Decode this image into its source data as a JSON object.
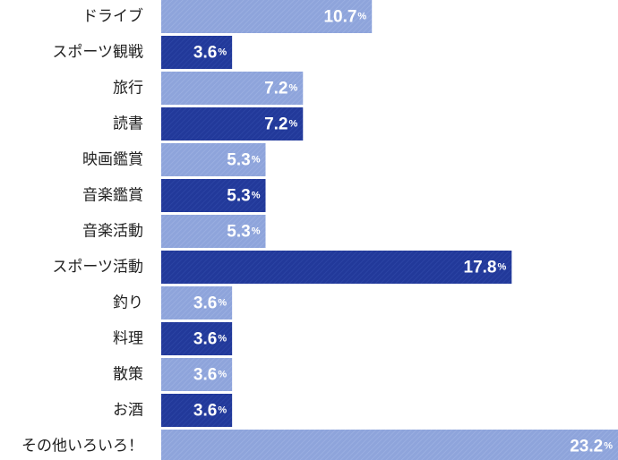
{
  "chart_data": {
    "type": "bar",
    "orientation": "horizontal",
    "categories": [
      "ドライブ",
      "スポーツ観戦",
      "旅行",
      "読書",
      "映画鑑賞",
      "音楽鑑賞",
      "音楽活動",
      "スポーツ活動",
      "釣り",
      "料理",
      "散策",
      "お酒",
      "その他いろいろ！"
    ],
    "values": [
      10.7,
      3.6,
      7.2,
      7.2,
      5.3,
      5.3,
      5.3,
      17.8,
      3.6,
      3.6,
      3.6,
      3.6,
      23.2
    ],
    "value_labels": [
      "10.7",
      "3.6",
      "7.2",
      "7.2",
      "5.3",
      "5.3",
      "5.3",
      "17.8",
      "3.6",
      "3.6",
      "3.6",
      "3.6",
      "23.2"
    ],
    "unit": "%",
    "xlim": [
      0,
      23.2
    ],
    "grid": false,
    "legend": "none",
    "colors": {
      "light": "#8ea4db",
      "dark": "#22399a",
      "text": "#ffffff",
      "label": "#222222"
    }
  }
}
